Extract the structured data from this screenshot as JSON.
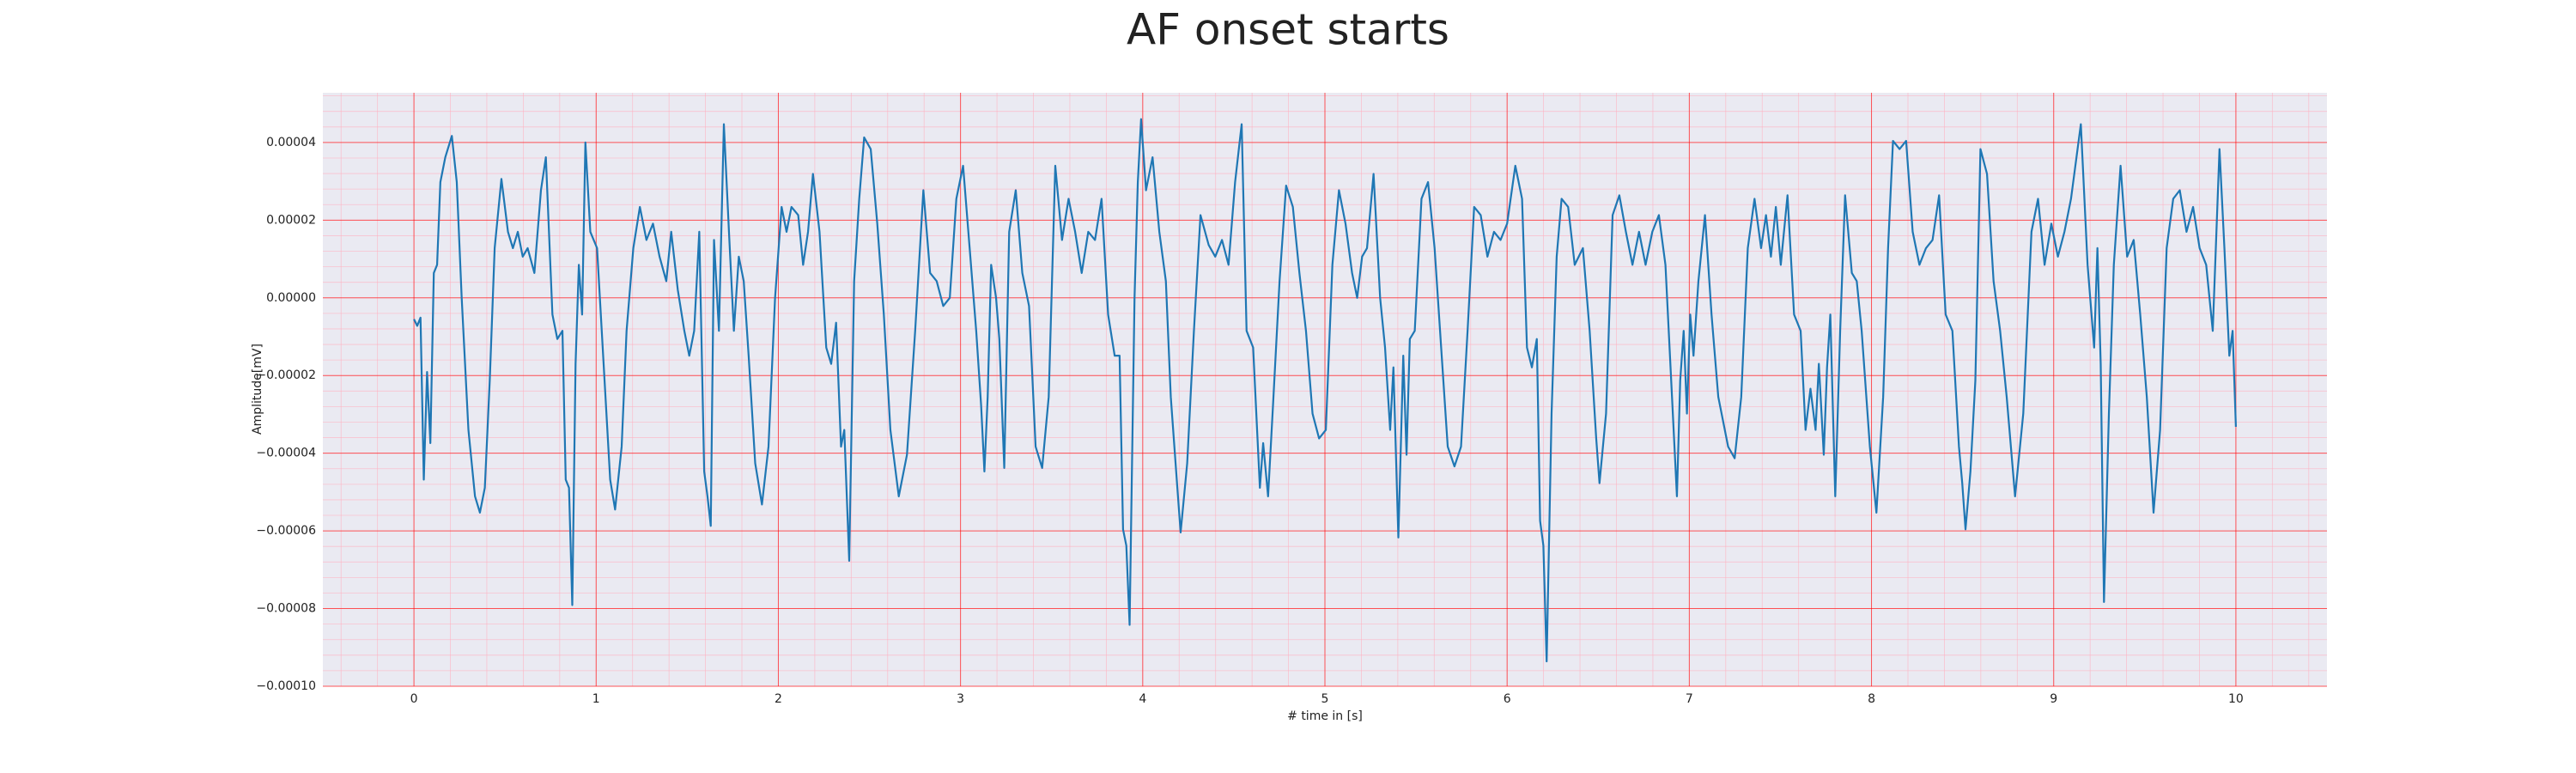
{
  "chart_data": {
    "type": "line",
    "title": "AF onset starts",
    "xlabel": "# time in [s]",
    "ylabel": "Amplitude[mV]",
    "color": "#1f77b4",
    "grid": true,
    "minor_grid": true,
    "xlim": [
      -0.5,
      10.5
    ],
    "xticks": [
      0,
      1,
      2,
      3,
      4,
      5,
      6,
      7,
      8,
      9,
      10
    ],
    "ylim": [
      -0.0001,
      5.28e-05
    ],
    "yticks": [
      {
        "value": -0.0001,
        "label": "−0.00010"
      },
      {
        "value": -8e-05,
        "label": "−0.00008"
      },
      {
        "value": -6e-05,
        "label": "−0.00006"
      },
      {
        "value": -4e-05,
        "label": "−0.00004"
      },
      {
        "value": -2e-05,
        "label": "−0.00002"
      },
      {
        "value": 0,
        "label": "0.00000"
      },
      2e-05,
      4e-05
    ],
    "x": [
      0,
      0.018,
      0.036,
      0.054,
      0.072,
      0.09,
      0.109,
      0.127,
      0.145,
      0.172,
      0.208,
      0.235,
      0.262,
      0.299,
      0.335,
      0.362,
      0.389,
      0.416,
      0.443,
      0.48,
      0.516,
      0.543,
      0.57,
      0.597,
      0.624,
      0.661,
      0.697,
      0.724,
      0.76,
      0.787,
      0.815,
      0.833,
      0.851,
      0.869,
      0.887,
      0.905,
      0.923,
      0.941,
      0.968,
      1.005,
      1.041,
      1.077,
      1.104,
      1.14,
      1.167,
      1.204,
      1.24,
      1.276,
      1.312,
      1.348,
      1.385,
      1.412,
      1.448,
      1.484,
      1.511,
      1.538,
      1.566,
      1.593,
      1.611,
      1.629,
      1.647,
      1.674,
      1.701,
      1.729,
      1.756,
      1.783,
      1.81,
      1.837,
      1.873,
      1.91,
      1.946,
      1.982,
      2.018,
      2.045,
      2.072,
      2.109,
      2.136,
      2.163,
      2.19,
      2.226,
      2.263,
      2.29,
      2.317,
      2.344,
      2.362,
      2.389,
      2.416,
      2.444,
      2.471,
      2.507,
      2.543,
      2.579,
      2.615,
      2.661,
      2.706,
      2.751,
      2.796,
      2.833,
      2.869,
      2.905,
      2.941,
      2.977,
      3.014,
      3.05,
      3.086,
      3.113,
      3.131,
      3.149,
      3.168,
      3.195,
      3.213,
      3.24,
      3.267,
      3.303,
      3.339,
      3.376,
      3.412,
      3.448,
      3.484,
      3.52,
      3.557,
      3.593,
      3.629,
      3.665,
      3.701,
      3.738,
      3.774,
      3.81,
      3.846,
      3.873,
      3.892,
      3.91,
      3.928,
      3.955,
      3.973,
      3.991,
      4.018,
      4.054,
      4.091,
      4.127,
      4.154,
      4.19,
      4.208,
      4.244,
      4.281,
      4.317,
      4.362,
      4.398,
      4.435,
      4.471,
      4.507,
      4.543,
      4.57,
      4.606,
      4.643,
      4.661,
      4.688,
      4.715,
      4.751,
      4.787,
      4.824,
      4.86,
      4.896,
      4.932,
      4.968,
      5.005,
      5.041,
      5.077,
      5.113,
      5.149,
      5.177,
      5.204,
      5.231,
      5.267,
      5.303,
      5.33,
      5.358,
      5.376,
      5.403,
      5.43,
      5.448,
      5.466,
      5.493,
      5.53,
      5.566,
      5.602,
      5.638,
      5.674,
      5.711,
      5.747,
      5.783,
      5.819,
      5.855,
      5.892,
      5.928,
      5.964,
      6.0,
      6.045,
      6.082,
      6.109,
      6.136,
      6.163,
      6.181,
      6.199,
      6.217,
      6.244,
      6.272,
      6.299,
      6.335,
      6.371,
      6.416,
      6.453,
      6.489,
      6.507,
      6.543,
      6.579,
      6.616,
      6.652,
      6.688,
      6.724,
      6.76,
      6.797,
      6.833,
      6.869,
      6.905,
      6.932,
      6.95,
      6.969,
      6.987,
      7.005,
      7.023,
      7.05,
      7.086,
      7.122,
      7.159,
      7.213,
      7.249,
      7.285,
      7.321,
      7.358,
      7.394,
      7.421,
      7.448,
      7.475,
      7.502,
      7.539,
      7.575,
      7.611,
      7.638,
      7.665,
      7.693,
      7.711,
      7.738,
      7.756,
      7.774,
      7.801,
      7.828,
      7.855,
      7.892,
      7.919,
      7.946,
      7.991,
      8.027,
      8.064,
      8.091,
      8.118,
      8.154,
      8.19,
      8.226,
      8.263,
      8.299,
      8.335,
      8.371,
      8.407,
      8.444,
      8.48,
      8.498,
      8.516,
      8.543,
      8.57,
      8.598,
      8.634,
      8.67,
      8.706,
      8.742,
      8.788,
      8.833,
      8.878,
      8.914,
      8.95,
      8.987,
      9.023,
      9.059,
      9.095,
      9.149,
      9.186,
      9.222,
      9.24,
      9.258,
      9.276,
      9.303,
      9.33,
      9.367,
      9.403,
      9.439,
      9.475,
      9.511,
      9.548,
      9.584,
      9.62,
      9.656,
      9.692,
      9.729,
      9.765,
      9.801,
      9.837,
      9.873,
      9.91,
      9.937,
      9.964,
      9.982,
      10.0
    ],
    "values": [
      -5.5e-06,
      -7.2e-06,
      -5.1e-06,
      -4.68e-05,
      -1.91e-05,
      -3.74e-05,
      6.4e-06,
      8.5e-06,
      2.98e-05,
      3.62e-05,
      4.17e-05,
      2.98e-05,
      0,
      -3.4e-05,
      -5.11e-05,
      -5.53e-05,
      -4.89e-05,
      -2.13e-05,
      1.28e-05,
      3.06e-05,
      1.7e-05,
      1.28e-05,
      1.7e-05,
      1.06e-05,
      1.28e-05,
      6.4e-06,
      2.77e-05,
      3.62e-05,
      -4.3e-06,
      -1.06e-05,
      -8.5e-06,
      -4.68e-05,
      -4.89e-05,
      -7.91e-05,
      -1.7e-05,
      8.5e-06,
      -4.3e-06,
      4e-05,
      1.7e-05,
      1.28e-05,
      -1.7e-05,
      -4.68e-05,
      -5.45e-05,
      -3.83e-05,
      -8.5e-06,
      1.28e-05,
      2.34e-05,
      1.49e-05,
      1.91e-05,
      1.06e-05,
      4.3e-06,
      1.7e-05,
      2.1e-06,
      -8.5e-06,
      -1.49e-05,
      -8.5e-06,
      1.7e-05,
      -4.47e-05,
      -5.11e-05,
      -5.87e-05,
      1.49e-05,
      -8.5e-06,
      4.47e-05,
      1.7e-05,
      -8.5e-06,
      1.06e-05,
      4.3e-06,
      -1.49e-05,
      -4.26e-05,
      -5.32e-05,
      -3.83e-05,
      0,
      2.34e-05,
      1.7e-05,
      2.34e-05,
      2.13e-05,
      8.5e-06,
      1.7e-05,
      3.19e-05,
      1.7e-05,
      -1.28e-05,
      -1.7e-05,
      -6.4e-06,
      -3.83e-05,
      -3.4e-05,
      -6.77e-05,
      4.3e-06,
      2.55e-05,
      4.13e-05,
      3.83e-05,
      1.91e-05,
      -4.3e-06,
      -3.4e-05,
      -5.11e-05,
      -4.04e-05,
      -8.5e-06,
      2.77e-05,
      6.4e-06,
      4.3e-06,
      -2.1e-06,
      0,
      2.55e-05,
      3.4e-05,
      1.28e-05,
      -8.5e-06,
      -2.77e-05,
      -4.47e-05,
      -2.55e-05,
      8.5e-06,
      0,
      -1.06e-05,
      -4.38e-05,
      1.7e-05,
      2.77e-05,
      6.4e-06,
      -2.1e-06,
      -3.83e-05,
      -4.38e-05,
      -2.55e-05,
      3.4e-05,
      1.49e-05,
      2.55e-05,
      1.7e-05,
      6.4e-06,
      1.7e-05,
      1.49e-05,
      2.55e-05,
      -4.3e-06,
      -1.49e-05,
      -1.49e-05,
      -5.96e-05,
      -6.38e-05,
      -8.42e-05,
      0,
      2.98e-05,
      4.6e-05,
      2.77e-05,
      3.62e-05,
      1.7e-05,
      4.3e-06,
      -2.55e-05,
      -4.89e-05,
      -6.04e-05,
      -4.26e-05,
      -8.5e-06,
      2.13e-05,
      1.36e-05,
      1.06e-05,
      1.49e-05,
      8.5e-06,
      2.98e-05,
      4.47e-05,
      -8.5e-06,
      -1.28e-05,
      -4.89e-05,
      -3.74e-05,
      -5.11e-05,
      -2.77e-05,
      4.3e-06,
      2.89e-05,
      2.34e-05,
      6.4e-06,
      -8.5e-06,
      -2.98e-05,
      -3.62e-05,
      -3.4e-05,
      8.5e-06,
      2.77e-05,
      1.91e-05,
      6.4e-06,
      0,
      1.06e-05,
      1.28e-05,
      3.19e-05,
      0,
      -1.28e-05,
      -3.4e-05,
      -1.79e-05,
      -6.17e-05,
      -1.49e-05,
      -4.04e-05,
      -1.06e-05,
      -8.5e-06,
      2.55e-05,
      2.98e-05,
      1.28e-05,
      -1.28e-05,
      -3.83e-05,
      -4.34e-05,
      -3.83e-05,
      -8.5e-06,
      2.34e-05,
      2.13e-05,
      1.06e-05,
      1.7e-05,
      1.49e-05,
      1.91e-05,
      3.4e-05,
      2.55e-05,
      -1.28e-05,
      -1.79e-05,
      -1.06e-05,
      -5.74e-05,
      -6.38e-05,
      -9.36e-05,
      -2.98e-05,
      1.06e-05,
      2.55e-05,
      2.34e-05,
      8.5e-06,
      1.28e-05,
      -8.5e-06,
      -3.62e-05,
      -4.77e-05,
      -2.98e-05,
      2.13e-05,
      2.64e-05,
      1.7e-05,
      8.5e-06,
      1.7e-05,
      8.5e-06,
      1.7e-05,
      2.13e-05,
      8.5e-06,
      -2.55e-05,
      -5.11e-05,
      -2.13e-05,
      -8.5e-06,
      -2.98e-05,
      -4.3e-06,
      -1.49e-05,
      4.3e-06,
      2.13e-05,
      -4.3e-06,
      -2.55e-05,
      -3.83e-05,
      -4.13e-05,
      -2.55e-05,
      1.28e-05,
      2.55e-05,
      1.28e-05,
      2.13e-05,
      1.06e-05,
      2.34e-05,
      8.5e-06,
      2.64e-05,
      -4.3e-06,
      -8.5e-06,
      -3.4e-05,
      -2.34e-05,
      -3.4e-05,
      -1.7e-05,
      -4.04e-05,
      -1.79e-05,
      -4.3e-06,
      -5.11e-05,
      -8.5e-06,
      2.64e-05,
      6.4e-06,
      4.3e-06,
      -8.5e-06,
      -3.83e-05,
      -5.53e-05,
      -2.55e-05,
      1.28e-05,
      4.04e-05,
      3.83e-05,
      4.04e-05,
      1.7e-05,
      8.5e-06,
      1.28e-05,
      1.49e-05,
      2.64e-05,
      -4.3e-06,
      -8.5e-06,
      -3.83e-05,
      -4.77e-05,
      -5.96e-05,
      -4.47e-05,
      -2.13e-05,
      3.83e-05,
      3.19e-05,
      4.3e-06,
      -8.5e-06,
      -2.55e-05,
      -5.11e-05,
      -2.98e-05,
      1.7e-05,
      2.55e-05,
      8.5e-06,
      1.91e-05,
      1.06e-05,
      1.7e-05,
      2.55e-05,
      4.47e-05,
      8.5e-06,
      -1.28e-05,
      1.28e-05,
      -1.7e-05,
      -7.83e-05,
      -2.98e-05,
      8.5e-06,
      3.4e-05,
      1.06e-05,
      1.49e-05,
      -4.3e-06,
      -2.55e-05,
      -5.53e-05,
      -3.4e-05,
      1.28e-05,
      2.55e-05,
      2.77e-05,
      1.7e-05,
      2.34e-05,
      1.28e-05,
      8.5e-06,
      -8.5e-06,
      3.83e-05,
      1.28e-05,
      -1.49e-05,
      -8.5e-06,
      -3.32e-05
    ]
  }
}
